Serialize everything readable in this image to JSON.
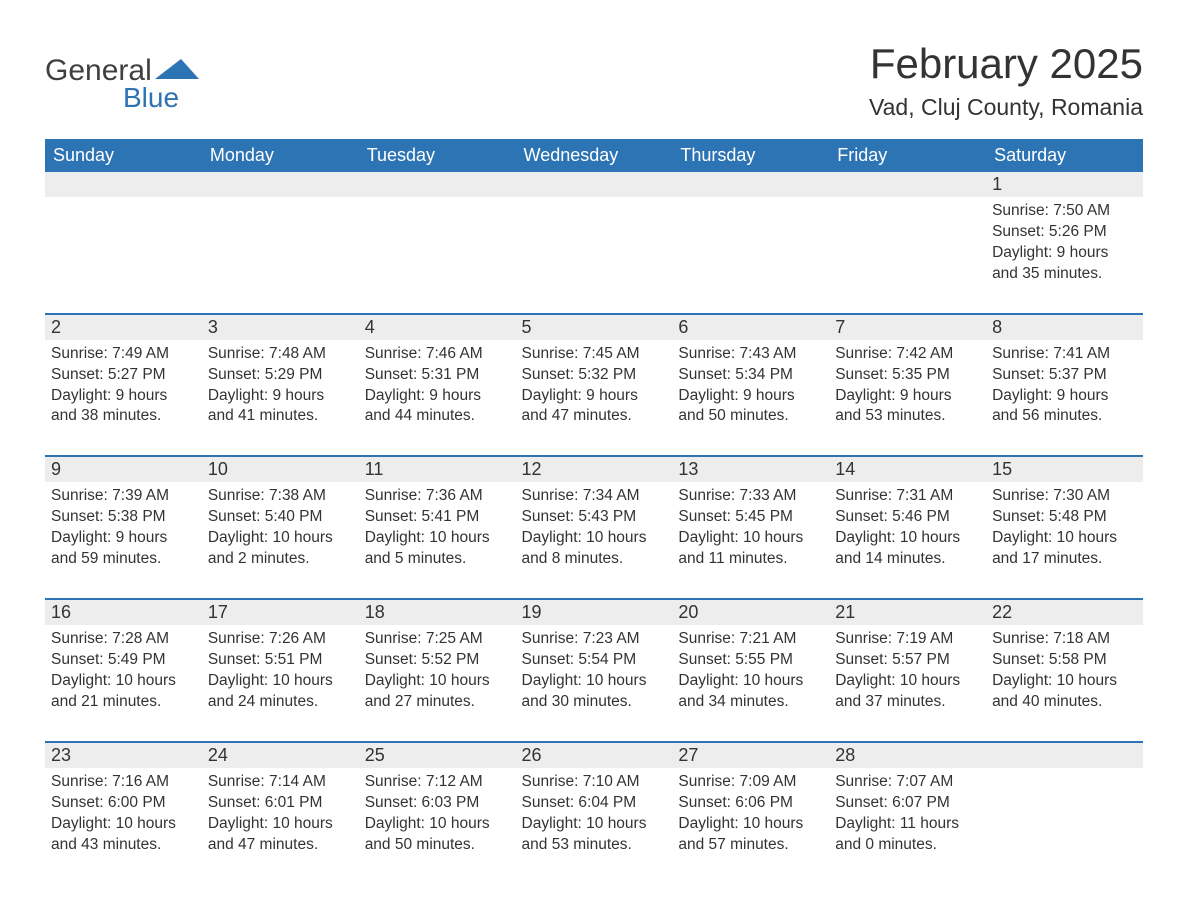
{
  "logo": {
    "text1": "General",
    "text2": "Blue"
  },
  "title": "February 2025",
  "location": "Vad, Cluj County, Romania",
  "colors": {
    "header_bg": "#2d74b5",
    "header_text": "#ffffff",
    "daynum_bg": "#ededed",
    "border": "#2d74b5",
    "body_text": "#333333",
    "background": "#ffffff"
  },
  "day_headers": [
    "Sunday",
    "Monday",
    "Tuesday",
    "Wednesday",
    "Thursday",
    "Friday",
    "Saturday"
  ],
  "weeks": [
    [
      null,
      null,
      null,
      null,
      null,
      null,
      {
        "n": "1",
        "sr": "Sunrise: 7:50 AM",
        "ss": "Sunset: 5:26 PM",
        "dl1": "Daylight: 9 hours",
        "dl2": "and 35 minutes."
      }
    ],
    [
      {
        "n": "2",
        "sr": "Sunrise: 7:49 AM",
        "ss": "Sunset: 5:27 PM",
        "dl1": "Daylight: 9 hours",
        "dl2": "and 38 minutes."
      },
      {
        "n": "3",
        "sr": "Sunrise: 7:48 AM",
        "ss": "Sunset: 5:29 PM",
        "dl1": "Daylight: 9 hours",
        "dl2": "and 41 minutes."
      },
      {
        "n": "4",
        "sr": "Sunrise: 7:46 AM",
        "ss": "Sunset: 5:31 PM",
        "dl1": "Daylight: 9 hours",
        "dl2": "and 44 minutes."
      },
      {
        "n": "5",
        "sr": "Sunrise: 7:45 AM",
        "ss": "Sunset: 5:32 PM",
        "dl1": "Daylight: 9 hours",
        "dl2": "and 47 minutes."
      },
      {
        "n": "6",
        "sr": "Sunrise: 7:43 AM",
        "ss": "Sunset: 5:34 PM",
        "dl1": "Daylight: 9 hours",
        "dl2": "and 50 minutes."
      },
      {
        "n": "7",
        "sr": "Sunrise: 7:42 AM",
        "ss": "Sunset: 5:35 PM",
        "dl1": "Daylight: 9 hours",
        "dl2": "and 53 minutes."
      },
      {
        "n": "8",
        "sr": "Sunrise: 7:41 AM",
        "ss": "Sunset: 5:37 PM",
        "dl1": "Daylight: 9 hours",
        "dl2": "and 56 minutes."
      }
    ],
    [
      {
        "n": "9",
        "sr": "Sunrise: 7:39 AM",
        "ss": "Sunset: 5:38 PM",
        "dl1": "Daylight: 9 hours",
        "dl2": "and 59 minutes."
      },
      {
        "n": "10",
        "sr": "Sunrise: 7:38 AM",
        "ss": "Sunset: 5:40 PM",
        "dl1": "Daylight: 10 hours",
        "dl2": "and 2 minutes."
      },
      {
        "n": "11",
        "sr": "Sunrise: 7:36 AM",
        "ss": "Sunset: 5:41 PM",
        "dl1": "Daylight: 10 hours",
        "dl2": "and 5 minutes."
      },
      {
        "n": "12",
        "sr": "Sunrise: 7:34 AM",
        "ss": "Sunset: 5:43 PM",
        "dl1": "Daylight: 10 hours",
        "dl2": "and 8 minutes."
      },
      {
        "n": "13",
        "sr": "Sunrise: 7:33 AM",
        "ss": "Sunset: 5:45 PM",
        "dl1": "Daylight: 10 hours",
        "dl2": "and 11 minutes."
      },
      {
        "n": "14",
        "sr": "Sunrise: 7:31 AM",
        "ss": "Sunset: 5:46 PM",
        "dl1": "Daylight: 10 hours",
        "dl2": "and 14 minutes."
      },
      {
        "n": "15",
        "sr": "Sunrise: 7:30 AM",
        "ss": "Sunset: 5:48 PM",
        "dl1": "Daylight: 10 hours",
        "dl2": "and 17 minutes."
      }
    ],
    [
      {
        "n": "16",
        "sr": "Sunrise: 7:28 AM",
        "ss": "Sunset: 5:49 PM",
        "dl1": "Daylight: 10 hours",
        "dl2": "and 21 minutes."
      },
      {
        "n": "17",
        "sr": "Sunrise: 7:26 AM",
        "ss": "Sunset: 5:51 PM",
        "dl1": "Daylight: 10 hours",
        "dl2": "and 24 minutes."
      },
      {
        "n": "18",
        "sr": "Sunrise: 7:25 AM",
        "ss": "Sunset: 5:52 PM",
        "dl1": "Daylight: 10 hours",
        "dl2": "and 27 minutes."
      },
      {
        "n": "19",
        "sr": "Sunrise: 7:23 AM",
        "ss": "Sunset: 5:54 PM",
        "dl1": "Daylight: 10 hours",
        "dl2": "and 30 minutes."
      },
      {
        "n": "20",
        "sr": "Sunrise: 7:21 AM",
        "ss": "Sunset: 5:55 PM",
        "dl1": "Daylight: 10 hours",
        "dl2": "and 34 minutes."
      },
      {
        "n": "21",
        "sr": "Sunrise: 7:19 AM",
        "ss": "Sunset: 5:57 PM",
        "dl1": "Daylight: 10 hours",
        "dl2": "and 37 minutes."
      },
      {
        "n": "22",
        "sr": "Sunrise: 7:18 AM",
        "ss": "Sunset: 5:58 PM",
        "dl1": "Daylight: 10 hours",
        "dl2": "and 40 minutes."
      }
    ],
    [
      {
        "n": "23",
        "sr": "Sunrise: 7:16 AM",
        "ss": "Sunset: 6:00 PM",
        "dl1": "Daylight: 10 hours",
        "dl2": "and 43 minutes."
      },
      {
        "n": "24",
        "sr": "Sunrise: 7:14 AM",
        "ss": "Sunset: 6:01 PM",
        "dl1": "Daylight: 10 hours",
        "dl2": "and 47 minutes."
      },
      {
        "n": "25",
        "sr": "Sunrise: 7:12 AM",
        "ss": "Sunset: 6:03 PM",
        "dl1": "Daylight: 10 hours",
        "dl2": "and 50 minutes."
      },
      {
        "n": "26",
        "sr": "Sunrise: 7:10 AM",
        "ss": "Sunset: 6:04 PM",
        "dl1": "Daylight: 10 hours",
        "dl2": "and 53 minutes."
      },
      {
        "n": "27",
        "sr": "Sunrise: 7:09 AM",
        "ss": "Sunset: 6:06 PM",
        "dl1": "Daylight: 10 hours",
        "dl2": "and 57 minutes."
      },
      {
        "n": "28",
        "sr": "Sunrise: 7:07 AM",
        "ss": "Sunset: 6:07 PM",
        "dl1": "Daylight: 11 hours",
        "dl2": "and 0 minutes."
      },
      null
    ]
  ]
}
